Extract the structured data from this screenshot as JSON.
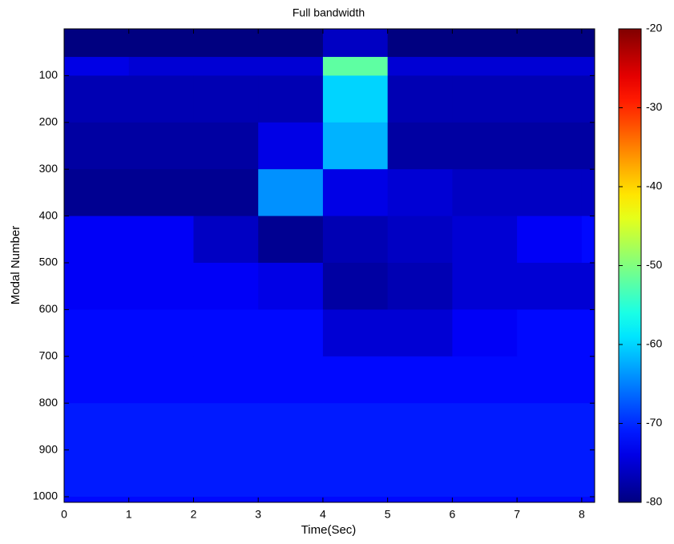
{
  "chart_data": {
    "type": "heatmap",
    "title": "Full bandwidth",
    "x_label": "Time(Sec)",
    "y_label": "Modal Number",
    "colormap": "jet",
    "clim": [
      -80,
      -20
    ],
    "cticks": [
      -80,
      -70,
      -60,
      -50,
      -40,
      -30,
      -20
    ],
    "xlim": [
      0,
      8.2
    ],
    "xticks": [
      0,
      1,
      2,
      3,
      4,
      5,
      6,
      7,
      8
    ],
    "ylim": [
      0,
      1012
    ],
    "yticks": [
      100,
      200,
      300,
      400,
      500,
      600,
      700,
      800,
      900,
      1000
    ],
    "y_inverted": true,
    "x_edges": [
      0,
      1,
      2,
      3,
      4,
      5,
      6,
      7,
      8,
      8.2
    ],
    "y_edges": [
      0,
      60,
      100,
      200,
      300,
      400,
      500,
      600,
      700,
      800,
      900,
      1000,
      1012
    ],
    "z": [
      [
        -80,
        -80,
        -80,
        -80,
        -76,
        -80,
        -80,
        -80,
        -80
      ],
      [
        -74,
        -75,
        -75,
        -75,
        -52,
        -75,
        -75,
        -75,
        -75
      ],
      [
        -77,
        -77,
        -77,
        -77,
        -60,
        -77,
        -77,
        -77,
        -77
      ],
      [
        -78,
        -78,
        -78,
        -74,
        -62,
        -78,
        -78,
        -78,
        -78
      ],
      [
        -79,
        -79,
        -79,
        -64,
        -74,
        -75,
        -76,
        -76,
        -76
      ],
      [
        -73,
        -73,
        -76,
        -79,
        -77,
        -76,
        -75,
        -73,
        -72
      ],
      [
        -73,
        -73,
        -73,
        -74,
        -78,
        -77,
        -75,
        -75,
        -75
      ],
      [
        -72,
        -72,
        -72,
        -72,
        -75,
        -75,
        -73,
        -72,
        -72
      ],
      [
        -72,
        -72,
        -72,
        -72,
        -72,
        -72,
        -72,
        -72,
        -72
      ],
      [
        -71,
        -71,
        -71,
        -71,
        -71,
        -71,
        -71,
        -71,
        -71
      ],
      [
        -71,
        -71,
        -71,
        -71,
        -71,
        -71,
        -71,
        -71,
        -71
      ],
      [
        -72,
        -72,
        -72,
        -72,
        -72,
        -72,
        -72,
        -72,
        -72
      ]
    ]
  }
}
